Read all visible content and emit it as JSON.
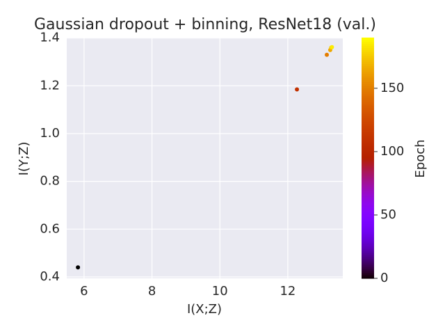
{
  "chart_data": {
    "type": "scatter",
    "title": "Gaussian dropout + binning, ResNet18 (val.)",
    "x_label": "I(X;Z)",
    "y_label": "I(Y;Z)",
    "colorbar_label": "Epoch",
    "colormap": "gnuplot",
    "series": [
      {
        "x": [
          5.82,
          12.27,
          13.15,
          13.25,
          13.28,
          13.3
        ],
        "values": [
          0.44,
          1.185,
          1.33,
          1.35,
          1.36,
          1.362
        ],
        "epochs": [
          0,
          110,
          150,
          165,
          175,
          185
        ]
      }
    ],
    "xlim": [
      5.49,
      13.62
    ],
    "xticks": [
      6,
      8,
      10,
      12
    ],
    "ylim": [
      0.394,
      1.402
    ],
    "yticks": [
      0.4,
      0.6,
      0.8,
      1.0,
      1.2,
      1.4
    ],
    "clim": [
      0,
      190
    ],
    "cticks": [
      0,
      50,
      100,
      150
    ],
    "grid": true
  }
}
